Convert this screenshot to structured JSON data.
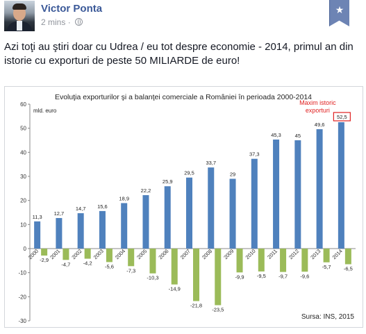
{
  "post": {
    "author": "Victor Ponta",
    "time": "2 mins",
    "separator": "·",
    "text": "Azi toţi au ştiri doar cu Udrea / eu tot despre economie - 2014, primul an din istorie cu exporturi de peste 50 MILIARDE de euro!",
    "bookmark_icon": "star-icon"
  },
  "chart_data": {
    "type": "bar",
    "title": "Evoluţia exporturilor şi a balanţei comerciale a României în perioada 2000-2014",
    "ylabel": "mld. euro",
    "ylim": [
      -30,
      60
    ],
    "yticks": [
      "60",
      "50",
      "40",
      "30",
      "20",
      "10",
      "0",
      "-10",
      "-20",
      "-30"
    ],
    "categories": [
      "2000",
      "2001",
      "2002",
      "2003",
      "2004",
      "2005",
      "2006",
      "2007",
      "2008",
      "2009",
      "2010",
      "2011",
      "2012",
      "2013",
      "2014"
    ],
    "series": [
      {
        "color": "#4f81bd",
        "values": [
          11.3,
          12.7,
          14.7,
          15.6,
          18.9,
          22.2,
          25.9,
          29.5,
          33.7,
          29,
          37.3,
          45.3,
          45,
          49.6,
          52.5
        ],
        "labels": [
          "11,3",
          "12,7",
          "14,7",
          "15,6",
          "18,9",
          "22,2",
          "25,9",
          "29,5",
          "33,7",
          "29",
          "37,3",
          "45,3",
          "45",
          "49,6",
          "52,5"
        ]
      },
      {
        "color": "#9bbb59",
        "values": [
          -2.9,
          -4.7,
          -4.2,
          -5.6,
          -7.3,
          -10.3,
          -14.9,
          -21.8,
          -23.5,
          -9.9,
          -9.5,
          -9.7,
          -9.6,
          -5.7,
          -6.5
        ],
        "labels": [
          "-2,9",
          "-4,7",
          "-4,2",
          "-5,6",
          "-7,3",
          "-10,3",
          "-14,9",
          "-21,8",
          "-23,5",
          "-9,9",
          "-9,5",
          "-9,7",
          "-9,6",
          "-5,7",
          "-6,5"
        ]
      }
    ],
    "annotation": {
      "line1": "Maxim istoric",
      "line2": "exporturi",
      "color": "#e02020"
    },
    "source": "Sursa: INS, 2015",
    "grid": false,
    "legend": "none"
  }
}
